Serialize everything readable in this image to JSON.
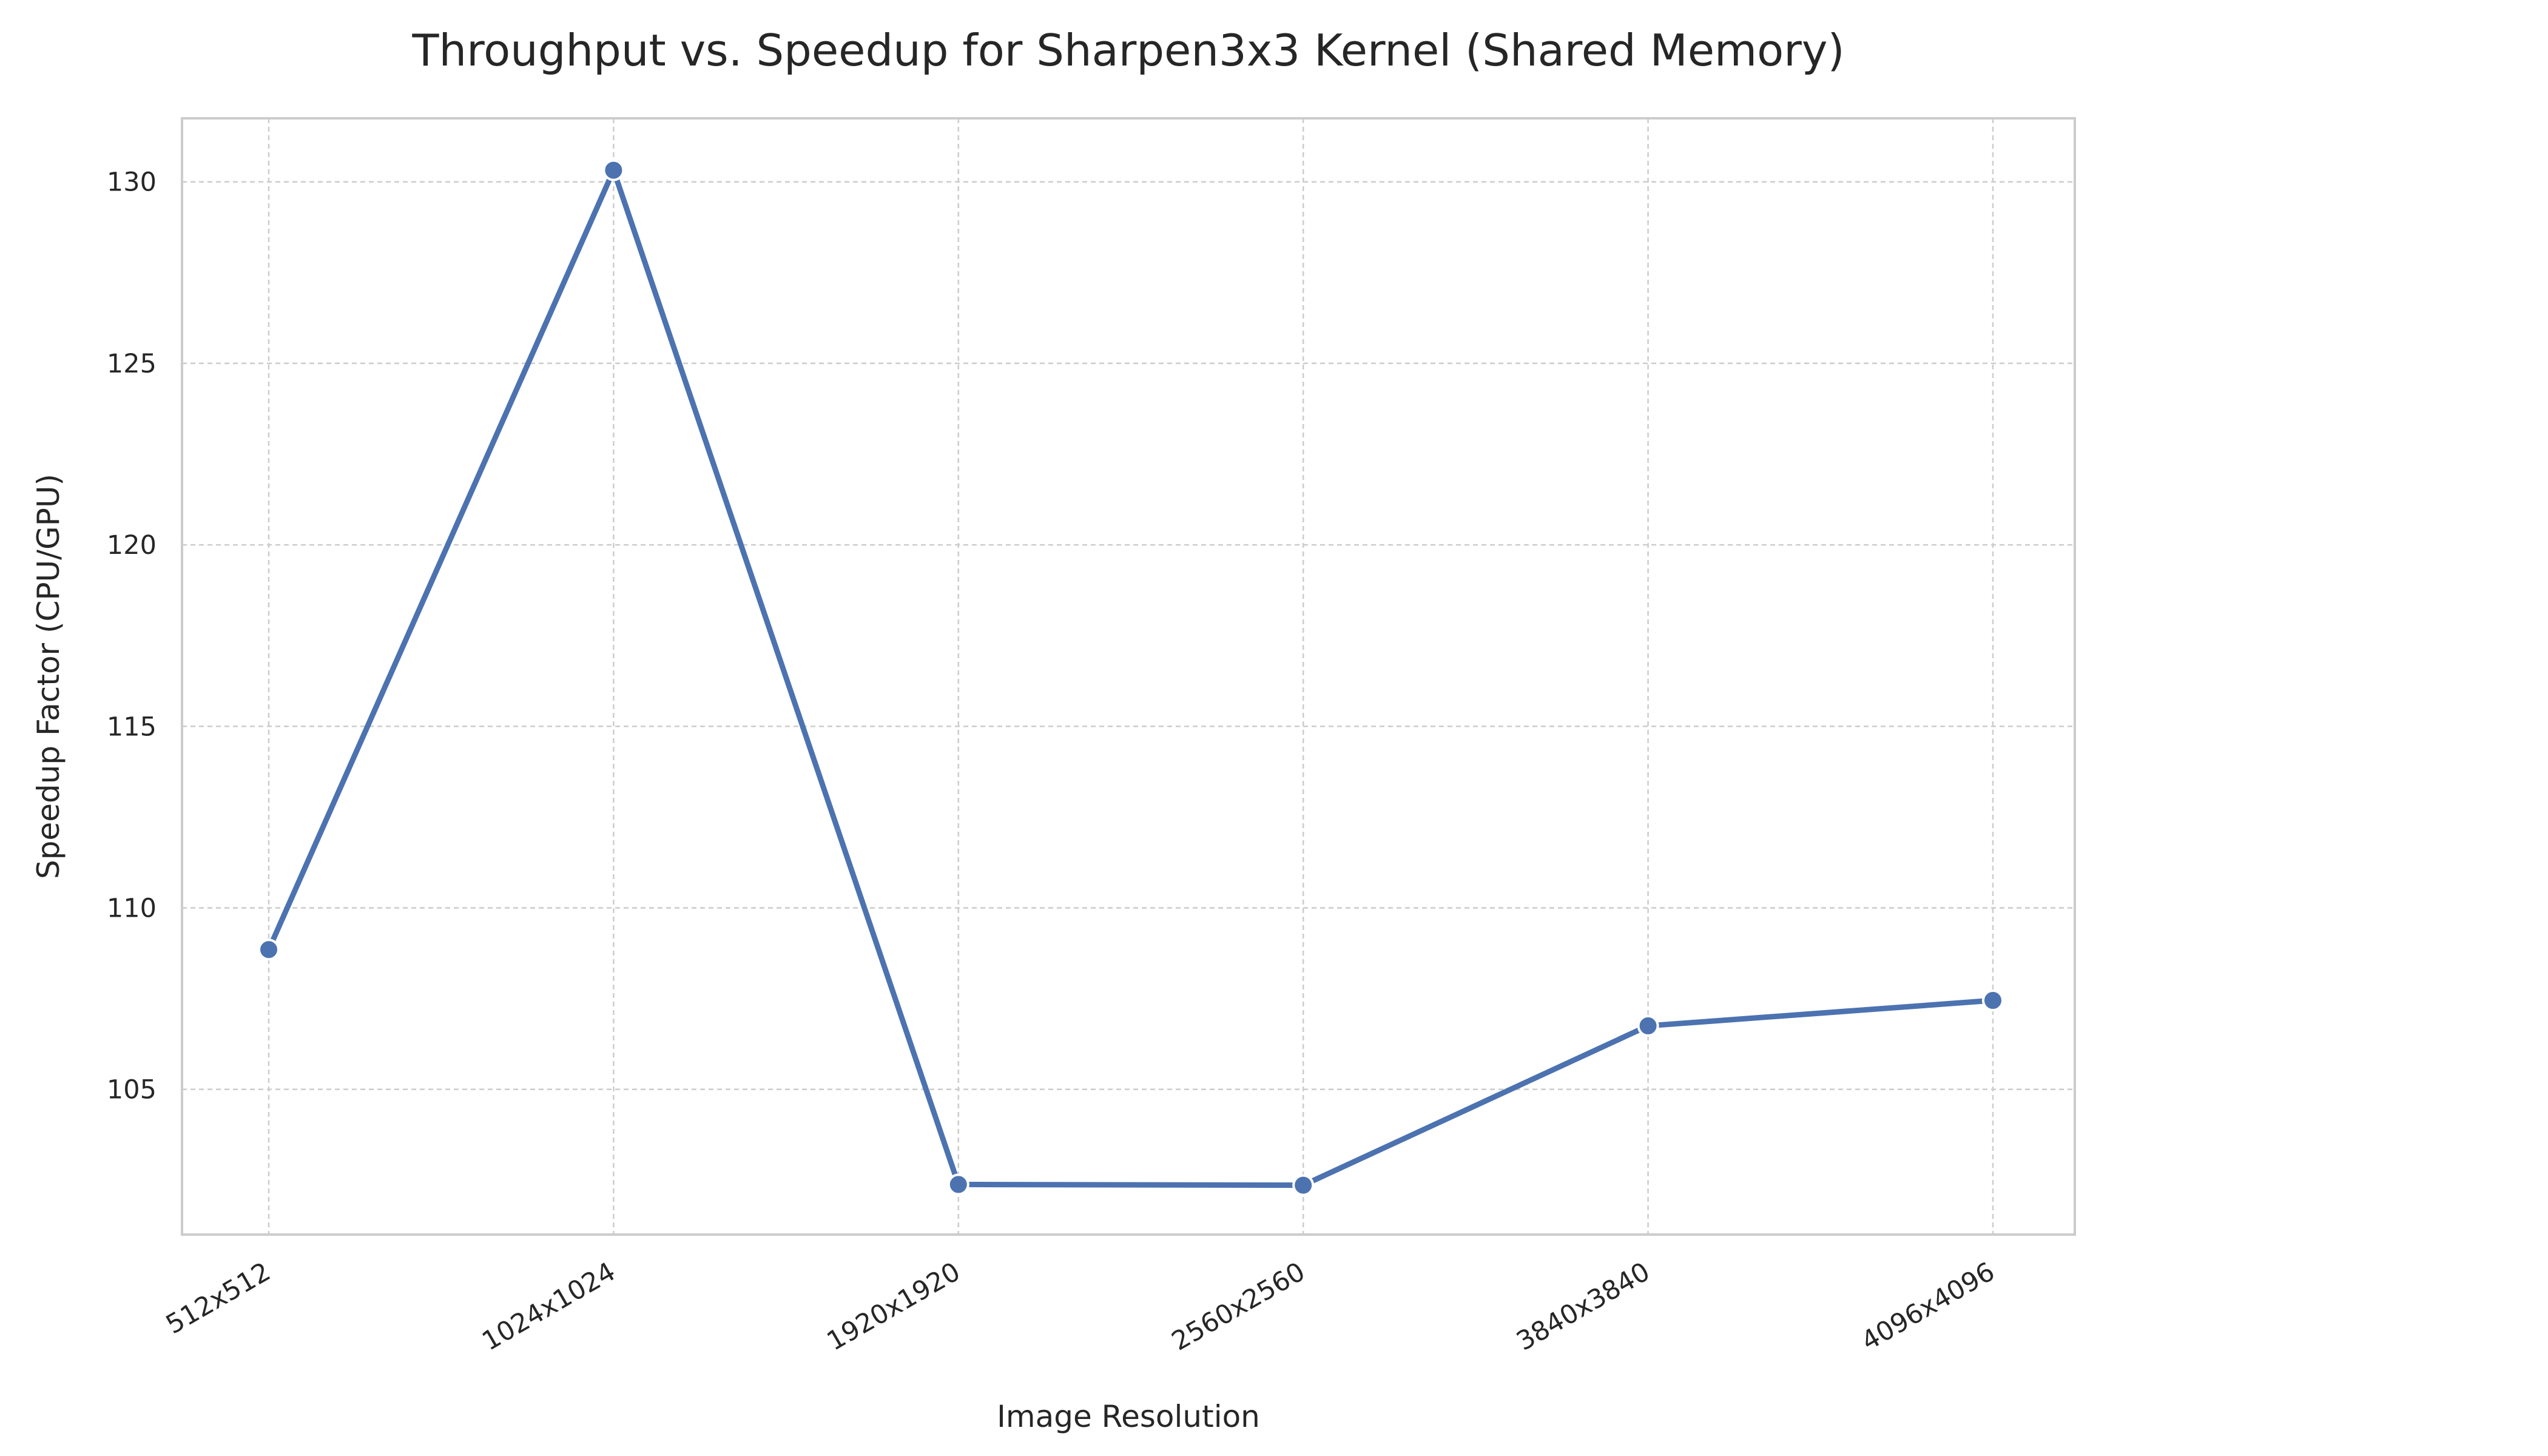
{
  "chart_data": {
    "type": "line",
    "title": "Throughput vs. Speedup for Sharpen3x3 Kernel (Shared Memory)",
    "xlabel": "Image Resolution",
    "ylabel": "Speedup Factor (CPU/GPU)",
    "categories": [
      "512x512",
      "1024x1024",
      "1920x1920",
      "2560x2560",
      "3840x3840",
      "4096x4096"
    ],
    "series": [
      {
        "values": [
          108.85,
          130.32,
          102.38,
          102.36,
          106.75,
          107.45
        ],
        "color": "#4c72b0"
      }
    ],
    "ylim": [
      101.0,
      131.75
    ],
    "yticks": [
      105,
      110,
      115,
      120,
      125,
      130
    ],
    "grid": true,
    "marker": "circle"
  }
}
